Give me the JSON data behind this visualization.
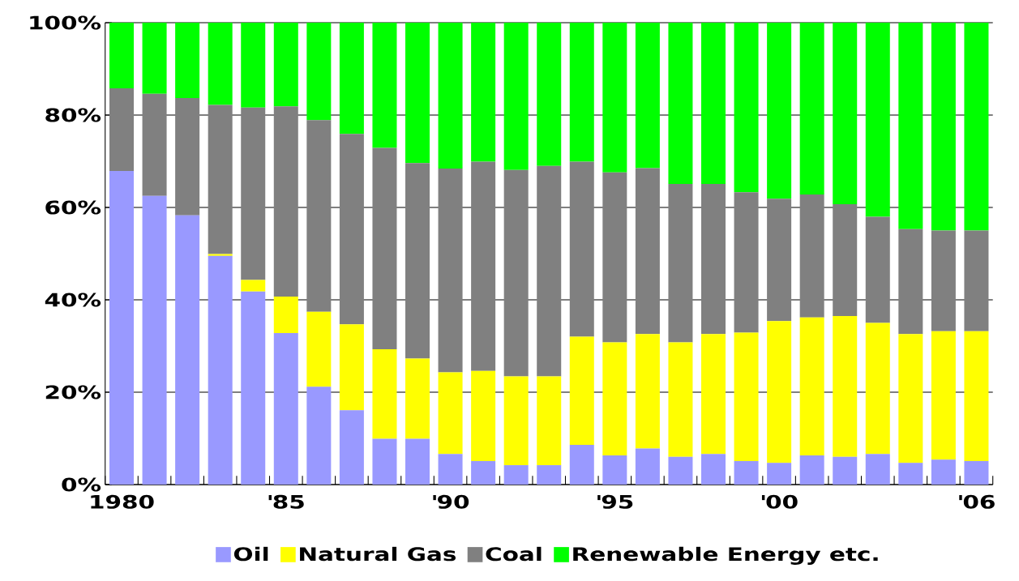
{
  "chart_data": {
    "type": "bar",
    "stacked": true,
    "categories": [
      "1980",
      null,
      null,
      null,
      null,
      "'85",
      null,
      null,
      null,
      null,
      "'90",
      null,
      null,
      null,
      null,
      "'95",
      null,
      null,
      null,
      null,
      "'00",
      null,
      null,
      null,
      null,
      null,
      "'06"
    ],
    "series": [
      {
        "name": "Oil",
        "color": "#9999ff",
        "values": [
          67.9,
          62.5,
          58.3,
          49.5,
          41.8,
          32.8,
          21.2,
          16.1,
          9.9,
          9.9,
          6.6,
          5.1,
          4.2,
          4.2,
          8.6,
          6.3,
          7.8,
          6.0,
          6.6,
          5.1,
          4.7,
          6.3,
          6.0,
          6.6,
          4.7,
          5.4,
          5.1
        ]
      },
      {
        "name": "Natural Gas",
        "color": "#ffff00",
        "values": [
          0,
          0,
          0,
          0.4,
          2.5,
          7.9,
          16.2,
          18.6,
          19.4,
          17.4,
          17.7,
          19.5,
          19.2,
          19.2,
          23.4,
          24.5,
          24.8,
          24.8,
          26.0,
          27.8,
          30.7,
          29.9,
          30.5,
          28.4,
          27.9,
          27.8,
          28.1
        ]
      },
      {
        "name": "Coal",
        "color": "#808080",
        "values": [
          17.9,
          22.1,
          25.4,
          32.3,
          37.3,
          41.2,
          41.5,
          41.2,
          43.6,
          42.3,
          44.1,
          45.3,
          44.7,
          45.6,
          37.9,
          36.8,
          35.9,
          34.3,
          32.5,
          30.4,
          26.5,
          26.6,
          24.2,
          23.0,
          22.7,
          21.8,
          21.8
        ]
      },
      {
        "name": "Renewable Energy etc.",
        "color": "#00ff00",
        "values": [
          14.2,
          15.4,
          16.3,
          17.8,
          18.4,
          18.1,
          21.1,
          24.1,
          27.1,
          30.4,
          31.6,
          30.1,
          31.9,
          31.0,
          30.1,
          32.4,
          31.5,
          34.9,
          34.9,
          36.7,
          38.1,
          37.2,
          39.3,
          42.0,
          44.7,
          45.0,
          45.0
        ]
      }
    ],
    "ylim": [
      0,
      100
    ],
    "yticks": [
      {
        "value": 0,
        "label": "0%"
      },
      {
        "value": 20,
        "label": "20%"
      },
      {
        "value": 40,
        "label": "40%"
      },
      {
        "value": 60,
        "label": "60%"
      },
      {
        "value": 80,
        "label": "80%"
      },
      {
        "value": 100,
        "label": "100%"
      }
    ],
    "grid": "y",
    "legend": "bottom"
  }
}
